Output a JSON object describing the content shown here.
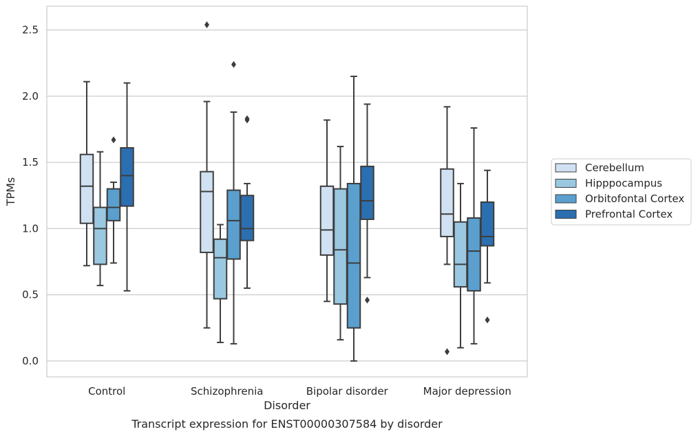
{
  "chart_data": {
    "type": "boxplot",
    "title": "Transcript expression for ENST00000307584 by disorder",
    "xlabel": "Disorder",
    "ylabel": "TPMs",
    "ylim": [
      -0.12,
      2.68
    ],
    "yticks": [
      "0.0",
      "0.5",
      "1.0",
      "1.5",
      "2.0",
      "2.5"
    ],
    "categories": [
      "Control",
      "Schizophrenia",
      "Bipolar disorder",
      "Major depression"
    ],
    "grid": "horizontal",
    "legend_position": "right",
    "series": [
      {
        "name": "Cerebellum",
        "color": "#d0e1f2",
        "boxes": [
          {
            "whisker_low": 0.72,
            "q1": 1.04,
            "median": 1.32,
            "q3": 1.56,
            "whisker_high": 2.11,
            "outliers": []
          },
          {
            "whisker_low": 0.25,
            "q1": 0.82,
            "median": 1.28,
            "q3": 1.43,
            "whisker_high": 1.96,
            "outliers": [
              2.54
            ]
          },
          {
            "whisker_low": 0.45,
            "q1": 0.8,
            "median": 0.99,
            "q3": 1.32,
            "whisker_high": 1.82,
            "outliers": []
          },
          {
            "whisker_low": 0.73,
            "q1": 0.94,
            "median": 1.11,
            "q3": 1.45,
            "whisker_high": 1.92,
            "outliers": [
              0.07
            ]
          }
        ]
      },
      {
        "name": "Hipppocampus",
        "color": "#9ac8e0",
        "boxes": [
          {
            "whisker_low": 0.57,
            "q1": 0.73,
            "median": 1.0,
            "q3": 1.16,
            "whisker_high": 1.58,
            "outliers": []
          },
          {
            "whisker_low": 0.14,
            "q1": 0.47,
            "median": 0.78,
            "q3": 0.92,
            "whisker_high": 1.03,
            "outliers": []
          },
          {
            "whisker_low": 0.16,
            "q1": 0.43,
            "median": 0.84,
            "q3": 1.3,
            "whisker_high": 1.62,
            "outliers": []
          },
          {
            "whisker_low": 0.1,
            "q1": 0.56,
            "median": 0.73,
            "q3": 1.05,
            "whisker_high": 1.34,
            "outliers": []
          }
        ]
      },
      {
        "name": "Orbitofontal Cortex",
        "color": "#5a9fce",
        "boxes": [
          {
            "whisker_low": 0.74,
            "q1": 1.06,
            "median": 1.16,
            "q3": 1.3,
            "whisker_high": 1.35,
            "outliers": [
              1.67
            ]
          },
          {
            "whisker_low": 0.13,
            "q1": 0.77,
            "median": 1.06,
            "q3": 1.29,
            "whisker_high": 1.88,
            "outliers": [
              2.24
            ]
          },
          {
            "whisker_low": 0.0,
            "q1": 0.25,
            "median": 0.74,
            "q3": 1.34,
            "whisker_high": 2.15,
            "outliers": []
          },
          {
            "whisker_low": 0.13,
            "q1": 0.53,
            "median": 0.83,
            "q3": 1.08,
            "whisker_high": 1.76,
            "outliers": []
          }
        ]
      },
      {
        "name": "Prefrontal Cortex",
        "color": "#2c6fb0",
        "boxes": [
          {
            "whisker_low": 0.53,
            "q1": 1.17,
            "median": 1.4,
            "q3": 1.61,
            "whisker_high": 2.1,
            "outliers": []
          },
          {
            "whisker_low": 0.55,
            "q1": 0.91,
            "median": 1.0,
            "q3": 1.25,
            "whisker_high": 1.34,
            "outliers": [
              1.82,
              1.83
            ]
          },
          {
            "whisker_low": 0.63,
            "q1": 1.07,
            "median": 1.21,
            "q3": 1.47,
            "whisker_high": 1.94,
            "outliers": [
              0.46
            ]
          },
          {
            "whisker_low": 0.59,
            "q1": 0.87,
            "median": 0.94,
            "q3": 1.2,
            "whisker_high": 1.44,
            "outliers": [
              0.31
            ]
          }
        ]
      }
    ]
  }
}
